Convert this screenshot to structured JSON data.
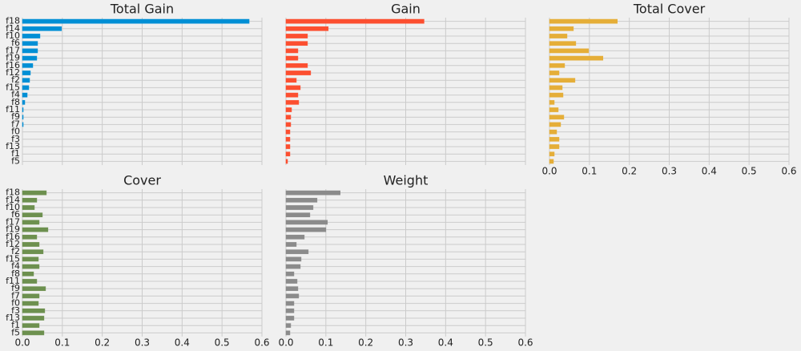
{
  "chart_data": [
    {
      "type": "bar",
      "orientation": "horizontal",
      "title": "Total Gain",
      "color": "#008fd5",
      "categories": [
        "f18",
        "f14",
        "f10",
        "f6",
        "f17",
        "f19",
        "f16",
        "f12",
        "f2",
        "f15",
        "f4",
        "f8",
        "f11",
        "f9",
        "f7",
        "f0",
        "f3",
        "f13",
        "f1",
        "f5"
      ],
      "values": [
        0.568,
        0.098,
        0.044,
        0.038,
        0.038,
        0.036,
        0.026,
        0.02,
        0.018,
        0.016,
        0.012,
        0.006,
        0.002,
        0.002,
        0.002,
        0,
        0,
        0,
        0,
        0
      ],
      "xlim": [
        0,
        0.6
      ],
      "xticks": [
        0,
        0.1,
        0.2,
        0.3,
        0.4,
        0.5,
        0.6
      ],
      "xtick_labels": false,
      "grid": true
    },
    {
      "type": "bar",
      "orientation": "horizontal",
      "title": "Gain",
      "color": "#fc4f30",
      "values": [
        0.346,
        0.106,
        0.054,
        0.054,
        0.03,
        0.03,
        0.054,
        0.062,
        0.026,
        0.036,
        0.03,
        0.032,
        0.014,
        0.012,
        0.012,
        0.01,
        0.01,
        0.01,
        0.01,
        0.004
      ],
      "xlim": [
        0,
        0.6
      ],
      "xticks": [
        0,
        0.1,
        0.2,
        0.3,
        0.4,
        0.5,
        0.6
      ],
      "xtick_labels": false,
      "grid": true
    },
    {
      "type": "bar",
      "orientation": "horizontal",
      "title": "Total Cover",
      "color": "#e5ae38",
      "values": [
        0.17,
        0.06,
        0.044,
        0.066,
        0.098,
        0.134,
        0.038,
        0.024,
        0.064,
        0.032,
        0.034,
        0.012,
        0.022,
        0.036,
        0.028,
        0.018,
        0.024,
        0.024,
        0.012,
        0.01
      ],
      "xlim": [
        0,
        0.6
      ],
      "xticks": [
        {
          "value": 0,
          "label": "0.0"
        },
        0.1,
        0.2,
        0.3,
        0.4,
        0.5,
        0.6
      ],
      "xtick_labels": true,
      "grid": true
    },
    {
      "type": "bar",
      "orientation": "horizontal",
      "title": "Cover",
      "color": "#6d904f",
      "categories": [
        "f18",
        "f14",
        "f10",
        "f6",
        "f17",
        "f19",
        "f16",
        "f12",
        "f2",
        "f15",
        "f4",
        "f8",
        "f11",
        "f9",
        "f7",
        "f0",
        "f3",
        "f13",
        "f1",
        "f5"
      ],
      "values": [
        0.06,
        0.036,
        0.03,
        0.05,
        0.042,
        0.064,
        0.036,
        0.042,
        0.052,
        0.04,
        0.042,
        0.028,
        0.036,
        0.058,
        0.042,
        0.04,
        0.056,
        0.054,
        0.042,
        0.054
      ],
      "xlim": [
        0,
        0.6
      ],
      "xticks": [
        {
          "value": 0,
          "label": "0.0"
        },
        0.1,
        0.2,
        0.3,
        0.4,
        0.5,
        0.6
      ],
      "xtick_labels": true,
      "grid": true
    },
    {
      "type": "bar",
      "orientation": "horizontal",
      "title": "Weight",
      "color": "#8b8b8b",
      "values": [
        0.136,
        0.078,
        0.068,
        0.06,
        0.104,
        0.1,
        0.046,
        0.026,
        0.056,
        0.038,
        0.036,
        0.02,
        0.028,
        0.03,
        0.032,
        0.02,
        0.02,
        0.02,
        0.012,
        0.01
      ],
      "xlim": [
        0,
        0.6
      ],
      "xticks": [
        {
          "value": 0,
          "label": "0.0"
        },
        0.1,
        0.2,
        0.3,
        0.4,
        0.5,
        0.6
      ],
      "xtick_labels": true,
      "grid": true
    }
  ]
}
